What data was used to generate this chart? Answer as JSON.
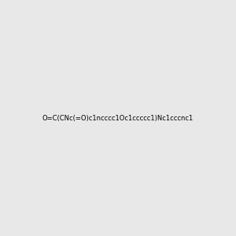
{
  "smiles": "O=C(CNc(=O)c1ncccc1Oc1ccccc1)Nc1cccnc1",
  "image_size": 300,
  "background_color": "#e8e8e8"
}
